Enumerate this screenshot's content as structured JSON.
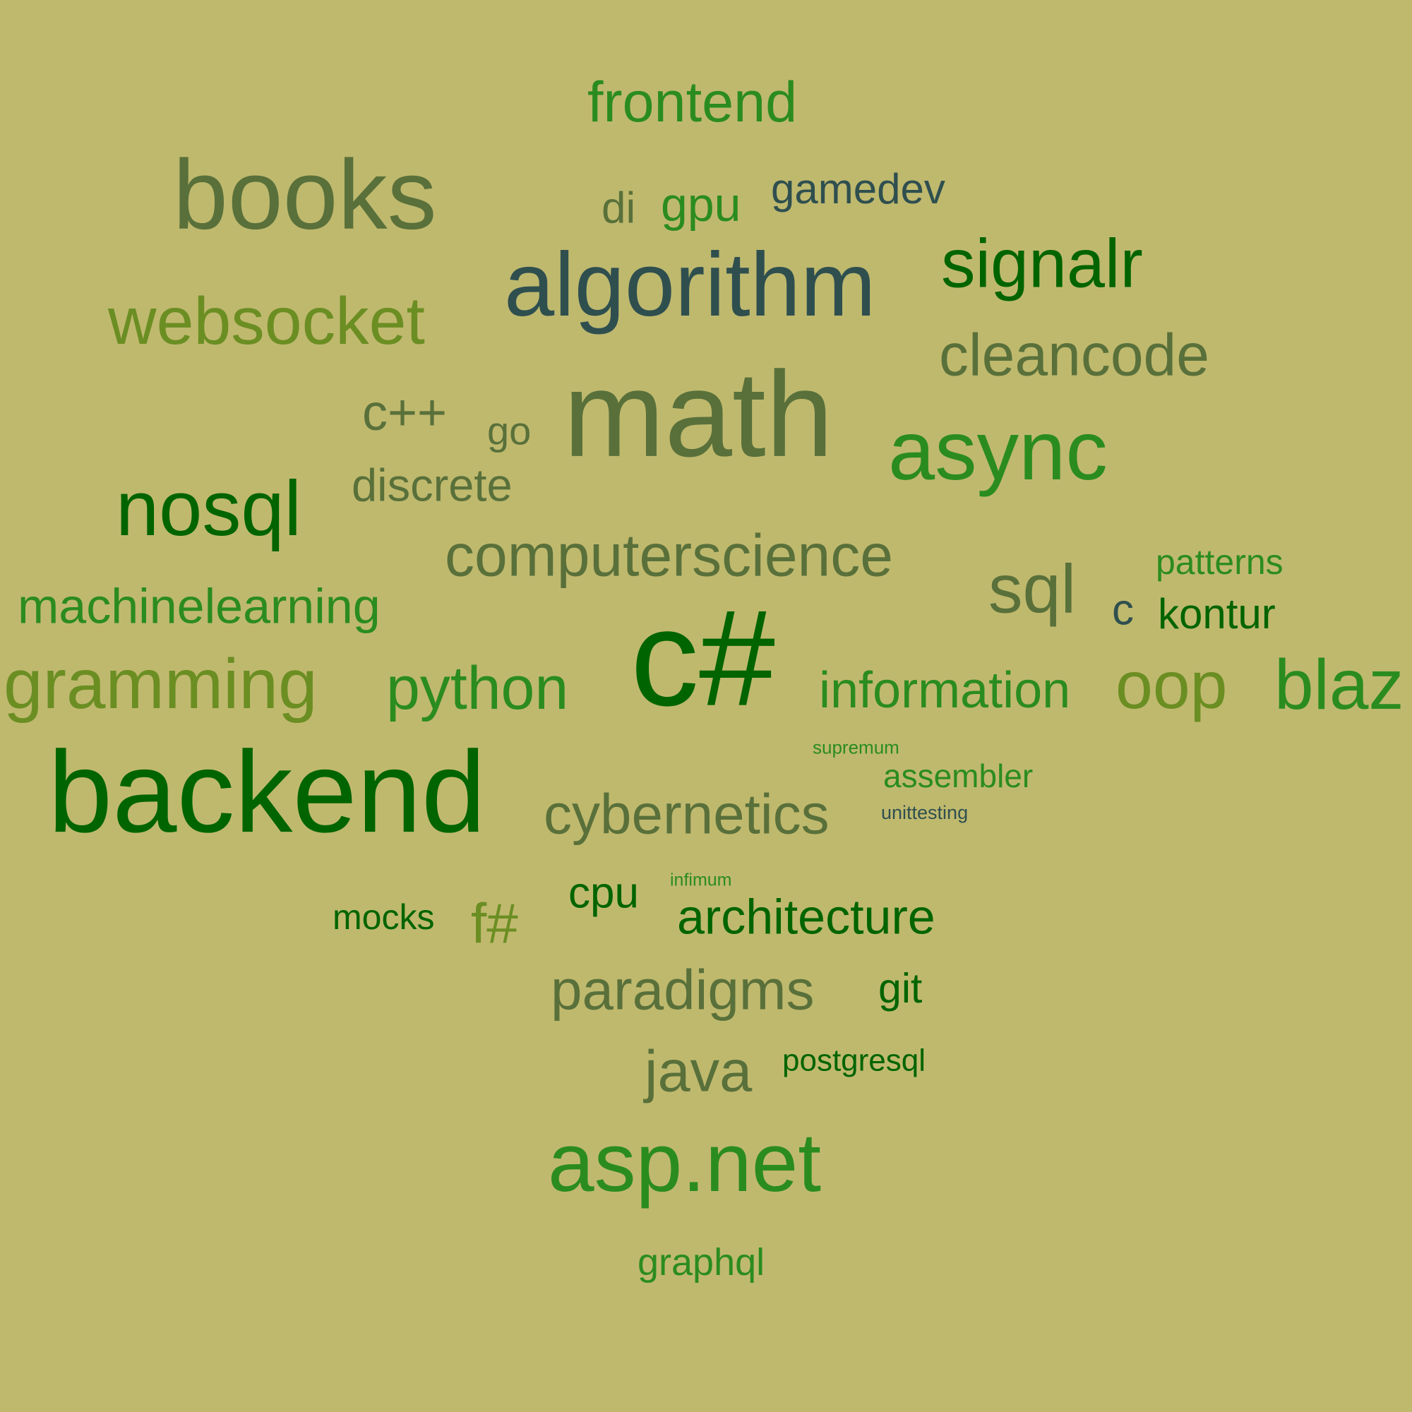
{
  "words": {
    "frontend": "frontend",
    "books": "books",
    "di": "di",
    "gpu": "gpu",
    "gamedev": "gamedev",
    "signalr": "signalr",
    "algorithm": "algorithm",
    "websocket": "websocket",
    "cleancode": "cleancode",
    "cpp": "c++",
    "go": "go",
    "math": "math",
    "async": "async",
    "discrete": "discrete",
    "nosql": "nosql",
    "computerscience": "computerscience",
    "patterns": "patterns",
    "sql": "sql",
    "c": "c",
    "kontur": "kontur",
    "machinelearning": "machinelearning",
    "programming": "gramming",
    "python": "python",
    "csharp": "c#",
    "information": "information",
    "oop": "oop",
    "blazor": "blaz",
    "supremum": "supremum",
    "assembler": "assembler",
    "backend": "backend",
    "cybernetics": "cybernetics",
    "unittesting": "unittesting",
    "infimum": "infimum",
    "cpu": "cpu",
    "mocks": "mocks",
    "fsharp": "f#",
    "architecture": "architecture",
    "paradigms": "paradigms",
    "git": "git",
    "postgresql": "postgresql",
    "java": "java",
    "aspnet": "asp.net",
    "graphql": "graphql"
  },
  "colors": {
    "background": "#bfb96e",
    "olive_gray": "#59703a",
    "bright_green": "#2b8c1e",
    "dark_green": "#006400",
    "slate": "#2f4f4f",
    "olive_drab": "#6b8e23"
  }
}
